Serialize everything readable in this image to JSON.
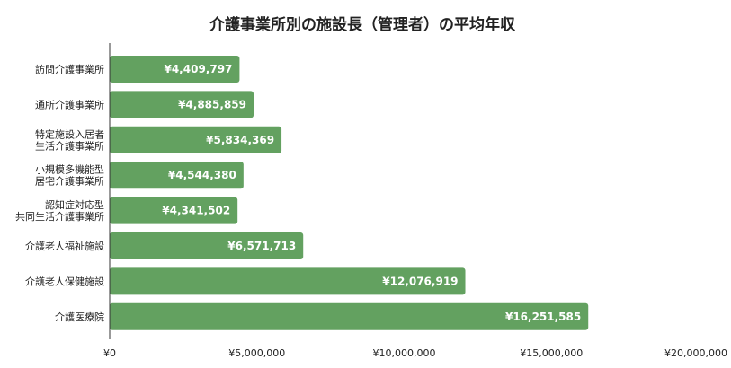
{
  "chart_data": {
    "type": "bar",
    "orientation": "horizontal",
    "title": "介護事業所別の施設長（管理者）の平均年収",
    "xlabel": "",
    "ylabel": "",
    "categories": [
      [
        "訪問介護事業所"
      ],
      [
        "通所介護事業所"
      ],
      [
        "特定施設入居者",
        "生活介護事業所"
      ],
      [
        "小規模多機能型",
        "居宅介護事業所"
      ],
      [
        "認知症対応型",
        "共同生活介護事業所"
      ],
      [
        "介護老人福祉施設"
      ],
      [
        "介護老人保健施設"
      ],
      [
        "介護医療院"
      ]
    ],
    "values": [
      4409797,
      4885859,
      5834369,
      4544380,
      4341502,
      6571713,
      12076919,
      16251585
    ],
    "value_labels": [
      "¥4,409,797",
      "¥4,885,859",
      "¥5,834,369",
      "¥4,544,380",
      "¥4,341,502",
      "¥6,571,713",
      "¥12,076,919",
      "¥16,251,585"
    ],
    "xlim": [
      0,
      20000000
    ],
    "x_ticks": [
      0,
      5000000,
      10000000,
      15000000,
      20000000
    ],
    "x_tick_labels": [
      "¥0",
      "¥5,000,000",
      "¥10,000,000",
      "¥15,000,000",
      "¥20,000,000"
    ],
    "grid": false,
    "legend": "none",
    "colors": {
      "bar": "#63a160",
      "axis": "#333333",
      "label": "#ffffff",
      "text": "#222222"
    }
  }
}
